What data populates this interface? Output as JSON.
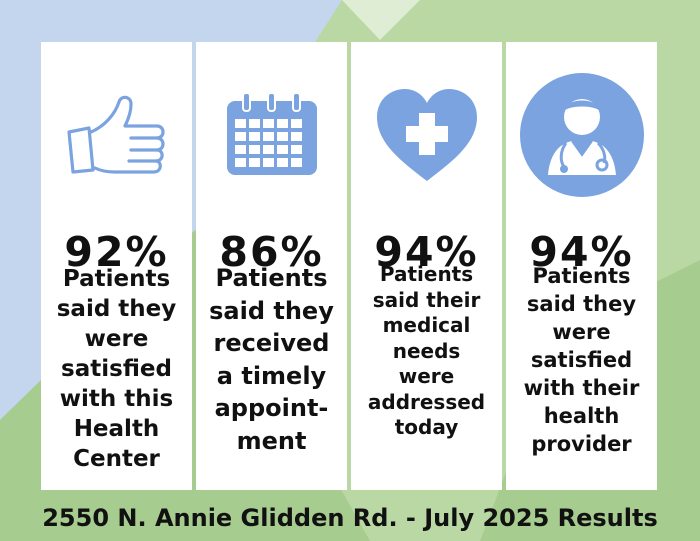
{
  "cards": [
    {
      "icon": "thumbs-up-icon",
      "percent": "92%",
      "description": "Patients\nsaid they\nwere\nsatisfied\nwith this\nHealth\nCenter"
    },
    {
      "icon": "calendar-icon",
      "percent": "86%",
      "description": "Patients\nsaid they\nreceived\na timely\nappoint-\nment"
    },
    {
      "icon": "heart-plus-icon",
      "percent": "94%",
      "description": "Patients\nsaid their\nmedical\nneeds\nwere\naddressed\ntoday"
    },
    {
      "icon": "doctor-icon",
      "percent": "94%",
      "description": "Patients\nsaid they\nwere\nsatisfied\nwith their\nhealth\nprovider"
    }
  ],
  "footer": "2550 N. Annie Glidden Rd. - July 2025 Results",
  "colors": {
    "icon_blue": "#7aa3e0",
    "background_blue": "#c3d6ee",
    "background_green": "#b9d8a3",
    "background_green_dark": "#a7cc8f",
    "text": "#111111"
  }
}
